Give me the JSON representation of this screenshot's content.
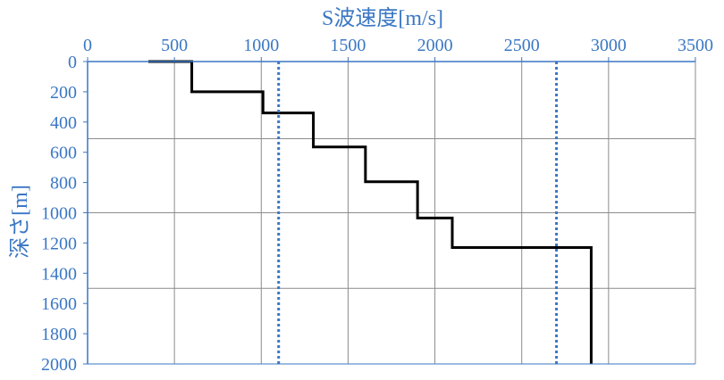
{
  "chart_data": {
    "type": "line",
    "xlabel": "S波速度[m/s]",
    "ylabel": "深さ[m]",
    "xlim": [
      0,
      3500
    ],
    "ylim": [
      0,
      2000
    ],
    "x_axis_position": "top",
    "y_axis_inverted": true,
    "x_ticks": [
      "0",
      "500",
      "1000",
      "1500",
      "2000",
      "2500",
      "3000",
      "3500"
    ],
    "y_ticks": [
      "0",
      "200",
      "400",
      "600",
      "800",
      "1000",
      "1200",
      "1400",
      "1600",
      "1800",
      "2000"
    ],
    "grid": {
      "vertical": true,
      "horizontal_depths": [
        510,
        1000,
        1500
      ]
    },
    "series": [
      {
        "style": "solid",
        "color": "#000000",
        "layers": [
          {
            "velocity": 350,
            "top": 0,
            "bottom": 0
          },
          {
            "velocity": 600,
            "top": 0,
            "bottom": 200
          },
          {
            "velocity": 1010,
            "top": 200,
            "bottom": 340
          },
          {
            "velocity": 1300,
            "top": 340,
            "bottom": 565
          },
          {
            "velocity": 1600,
            "top": 565,
            "bottom": 795
          },
          {
            "velocity": 1900,
            "top": 795,
            "bottom": 1035
          },
          {
            "velocity": 2100,
            "top": 1035,
            "bottom": 1230
          },
          {
            "velocity": 2900,
            "top": 1230,
            "bottom": 2000
          }
        ]
      },
      {
        "style": "dotted",
        "color": "#3a77c4",
        "x": [
          1100,
          1100
        ],
        "y": [
          0,
          2000
        ]
      },
      {
        "style": "dotted",
        "color": "#3a77c4",
        "x": [
          2700,
          2700
        ],
        "y": [
          0,
          2000
        ]
      }
    ]
  }
}
